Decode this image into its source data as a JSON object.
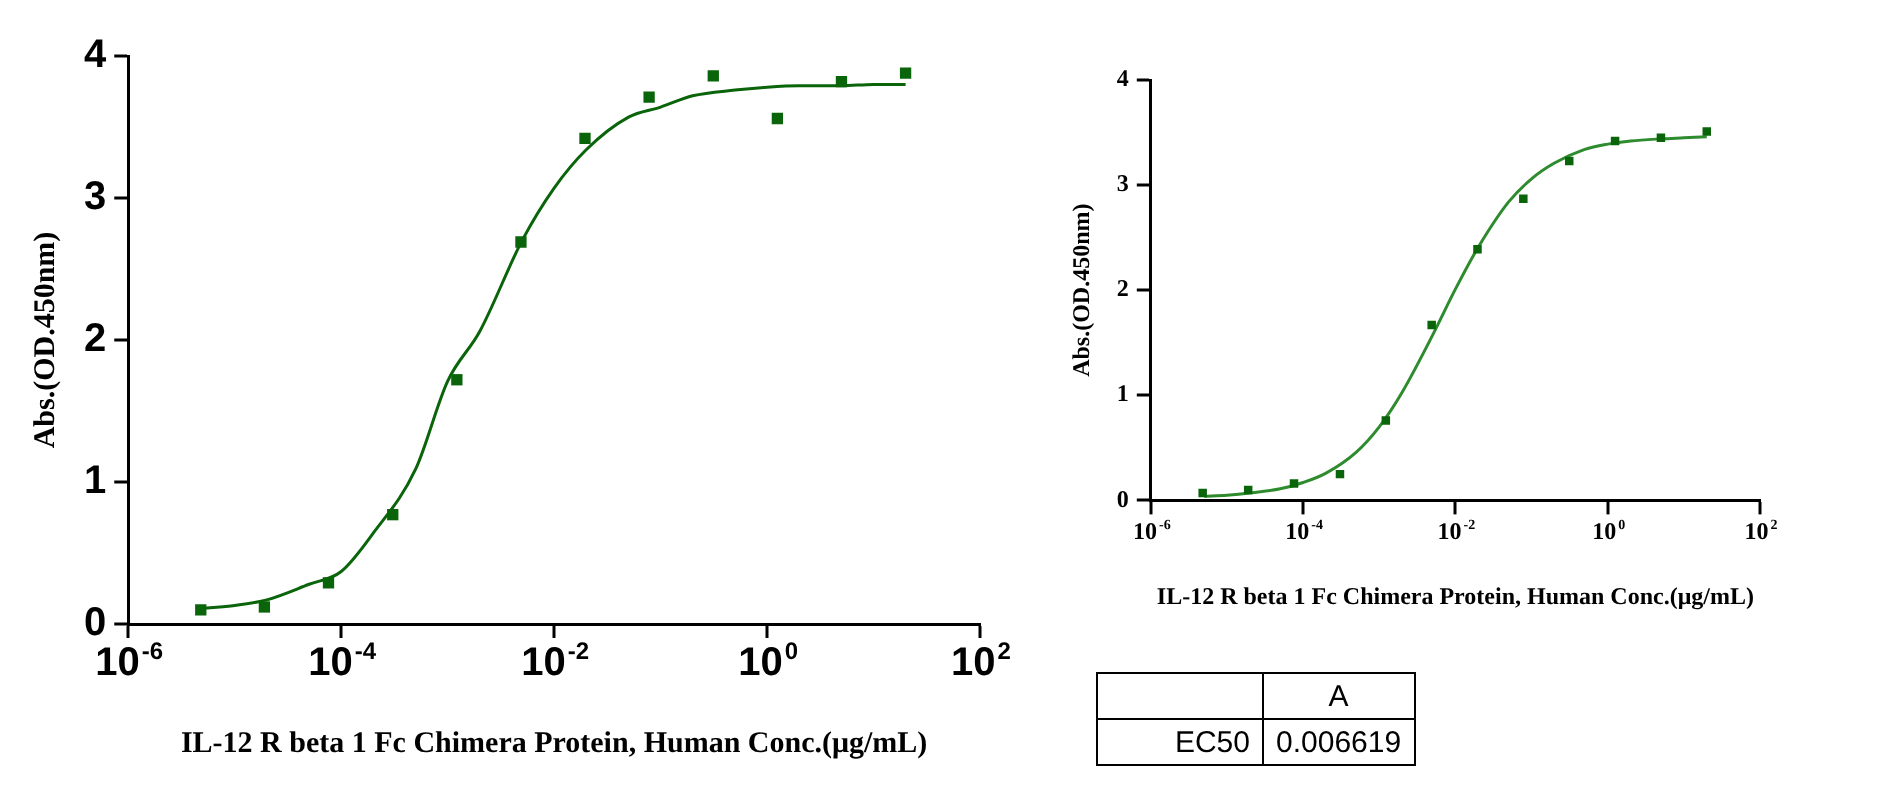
{
  "chart_data": [
    {
      "type": "scatter",
      "xlabel": "IL-12 R beta 1 Fc Chimera Protein, Human Conc.(μg/mL)",
      "ylabel": "Abs.(OD.450nm)",
      "log": "x",
      "xlim": [
        1e-06,
        100
      ],
      "xticks": [
        {
          "value": 1e-06,
          "label": "10$^{-6}$"
        },
        {
          "value": 0.0001,
          "label": "10$^{-4}$"
        },
        {
          "value": 0.01,
          "label": "10$^{-2}$"
        },
        {
          "value": 1,
          "label": "10$^{0}$"
        },
        {
          "value": 100,
          "label": "10$^{2}$"
        }
      ],
      "ylim": [
        0,
        4
      ],
      "yticks": [
        0,
        1,
        2,
        3,
        4
      ],
      "grid": false,
      "legend": false,
      "marker": "square",
      "series": [
        {
          "color": "#0a640a",
          "x": [
            4.8e-06,
            1.9e-05,
            7.6e-05,
            0.000305,
            0.00122,
            0.00488,
            0.0195,
            0.078,
            0.3125,
            1.25,
            5,
            20
          ],
          "values": [
            0.1,
            0.12,
            0.29,
            0.77,
            1.72,
            2.69,
            3.42,
            3.71,
            3.86,
            3.56,
            3.82,
            3.88
          ]
        },
        {
          "type": "line",
          "marker": "none",
          "color": "#0a640a",
          "x": [
            5e-06,
            1e-05,
            2e-05,
            5e-05,
            0.0001,
            0.0002,
            0.0005,
            0.001,
            0.002,
            0.005,
            0.01,
            0.02,
            0.05,
            0.1,
            0.2,
            0.5,
            1,
            2,
            5,
            10,
            20
          ],
          "values": [
            0.11,
            0.13,
            0.17,
            0.28,
            0.37,
            0.64,
            1.09,
            1.71,
            2.06,
            2.7,
            3.07,
            3.34,
            3.57,
            3.64,
            3.72,
            3.76,
            3.78,
            3.79,
            3.79,
            3.8,
            3.8
          ]
        }
      ]
    },
    {
      "type": "scatter",
      "xlabel": "IL-12 R beta 1 Fc Chimera Protein, Human Conc.(μg/mL)",
      "ylabel": "Abs.(OD.450nm)",
      "log": "x",
      "xlim": [
        1e-06,
        100
      ],
      "xticks": [
        {
          "value": 1e-06,
          "label": "10$^{-6}$"
        },
        {
          "value": 0.0001,
          "label": "10$^{-4}$"
        },
        {
          "value": 0.01,
          "label": "10$^{-2}$"
        },
        {
          "value": 1,
          "label": "10$^{0}$"
        },
        {
          "value": 100,
          "label": "10$^{2}$"
        }
      ],
      "ylim": [
        0,
        4
      ],
      "yticks": [
        0,
        1,
        2,
        3,
        4
      ],
      "grid": false,
      "legend": false,
      "marker": "square",
      "series": [
        {
          "color": "#0a640a",
          "x": [
            4.8e-06,
            1.9e-05,
            7.6e-05,
            0.000305,
            0.00122,
            0.00488,
            0.0195,
            0.078,
            0.3125,
            1.25,
            5,
            20
          ],
          "values": [
            0.07,
            0.1,
            0.16,
            0.25,
            0.76,
            1.67,
            2.39,
            2.87,
            3.23,
            3.42,
            3.45,
            3.51
          ]
        },
        {
          "type": "line",
          "marker": "none",
          "color": "#2e8b2e",
          "x": [
            5e-06,
            1e-05,
            2e-05,
            5e-05,
            0.0001,
            0.0002,
            0.0005,
            0.001,
            0.002,
            0.005,
            0.01,
            0.02,
            0.05,
            0.1,
            0.2,
            0.5,
            1,
            2,
            5,
            10,
            20
          ],
          "values": [
            0.04,
            0.05,
            0.07,
            0.11,
            0.17,
            0.26,
            0.46,
            0.7,
            1.03,
            1.57,
            2.01,
            2.41,
            2.84,
            3.06,
            3.21,
            3.34,
            3.39,
            3.42,
            3.44,
            3.45,
            3.46
          ]
        }
      ]
    },
    {
      "type": "other",
      "annotations": [
        "A",
        "EC50",
        "0.006619"
      ]
    }
  ]
}
